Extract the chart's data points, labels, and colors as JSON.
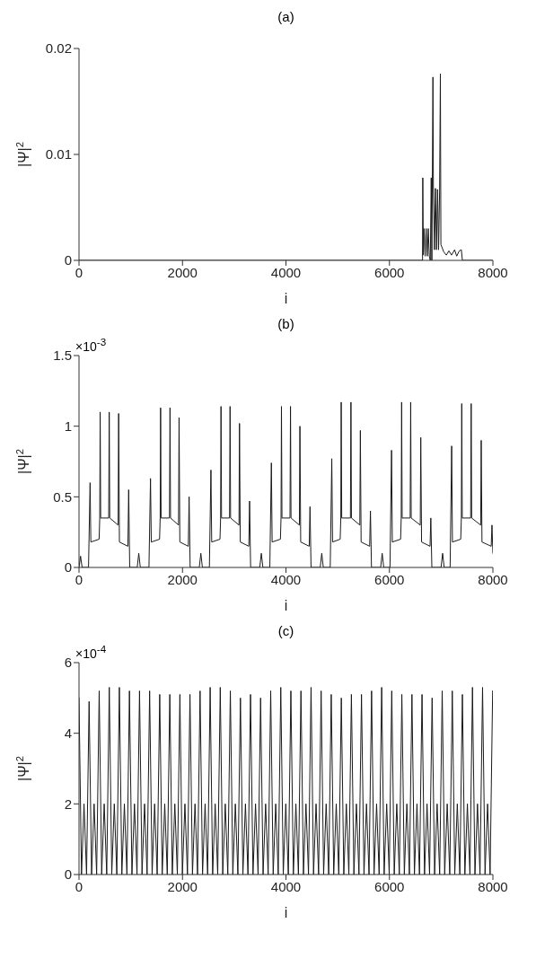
{
  "chart_data": [
    {
      "type": "line",
      "title": "(a)",
      "xlabel": "i",
      "ylabel": "|Ψ|$^{2}$",
      "color": "#1a1a1a",
      "line_style": "solid",
      "x": [
        0,
        6600,
        6640,
        6645,
        6655,
        6670,
        6690,
        6710,
        6730,
        6750,
        6770,
        6790,
        6808,
        6820,
        6841,
        6850,
        6870,
        6890,
        6910,
        6930,
        6950,
        6970,
        6985,
        6995,
        7050,
        7100,
        7150,
        7200,
        7260,
        7300,
        7350,
        7390,
        7410,
        8000
      ],
      "values": [
        0,
        0,
        0,
        0.0078,
        0.0005,
        0.003,
        0.0004,
        0.003,
        0.0004,
        0.003,
        0.0004,
        0,
        0.0078,
        0,
        0.0173,
        0.0067,
        0.001,
        0.0068,
        0.001,
        0.0067,
        0.001,
        0.0066,
        0.0176,
        0.0015,
        0.0008,
        0.0005,
        0.0009,
        0.0005,
        0.001,
        0.0004,
        0.0009,
        0.001,
        0,
        0
      ],
      "xlim": [
        0,
        8000
      ],
      "xticks": [
        0,
        2000,
        4000,
        6000,
        8000
      ],
      "ylim": [
        0,
        0.02
      ],
      "yticks": [
        0,
        0.01,
        0.02
      ]
    },
    {
      "type": "line",
      "title": "(b)",
      "xlabel": "i",
      "ylabel": "|Ψ|$^{2}$",
      "annotations": [
        "×10$^{-3}$"
      ],
      "color": "#1a1a1a",
      "line_style": "solid",
      "x": [
        0,
        30,
        60,
        184,
        214,
        229,
        389,
        401,
        409,
        419,
        574,
        584,
        594,
        756,
        766,
        781,
        945,
        960,
        980,
        1125,
        1155,
        1185,
        1352,
        1382,
        1397,
        1557,
        1569,
        1577,
        1587,
        1749,
        1759,
        1769,
        1924,
        1934,
        1949,
        2113,
        2128,
        2148,
        2325,
        2355,
        2385,
        2520,
        2550,
        2565,
        2725,
        2737,
        2745,
        2755,
        2910,
        2920,
        2930,
        3092,
        3102,
        3117,
        3282,
        3297,
        3317,
        3494,
        3524,
        3554,
        3688,
        3718,
        3733,
        3893,
        3905,
        3913,
        3923,
        4078,
        4088,
        4098,
        4260,
        4270,
        4285,
        4450,
        4465,
        4485,
        4662,
        4692,
        4722,
        4856,
        4886,
        4901,
        5048,
        5060,
        5068,
        5078,
        5246,
        5256,
        5266,
        5428,
        5438,
        5453,
        5618,
        5633,
        5653,
        5830,
        5860,
        5890,
        6011,
        6041,
        6056,
        6216,
        6228,
        6236,
        6246,
        6401,
        6411,
        6421,
        6596,
        6606,
        6621,
        6785,
        6800,
        6820,
        6998,
        7028,
        7058,
        7173,
        7203,
        7218,
        7378,
        7390,
        7398,
        7408,
        7570,
        7580,
        7590,
        7764,
        7774,
        7789,
        7967,
        7982,
        8000
      ],
      "values": [
        0,
        0.08,
        0,
        0,
        0.6,
        0.18,
        0.2,
        0.35,
        1.1,
        0.35,
        0.35,
        1.1,
        0.35,
        0.3,
        1.09,
        0.18,
        0.15,
        0.55,
        0,
        0,
        0.1,
        0,
        0,
        0.63,
        0.18,
        0.2,
        0.35,
        1.13,
        0.35,
        0.35,
        1.13,
        0.35,
        0.3,
        1.06,
        0.18,
        0.15,
        0.5,
        0,
        0,
        0.1,
        0,
        0,
        0.69,
        0.18,
        0.2,
        0.35,
        1.14,
        0.35,
        0.35,
        1.14,
        0.35,
        0.3,
        1.02,
        0.18,
        0.15,
        0.47,
        0,
        0,
        0.1,
        0,
        0,
        0.74,
        0.18,
        0.2,
        0.35,
        1.14,
        0.35,
        0.35,
        1.14,
        0.35,
        0.3,
        1,
        0.18,
        0.15,
        0.43,
        0,
        0,
        0.1,
        0,
        0,
        0.77,
        0.18,
        0.2,
        0.35,
        1.17,
        0.35,
        0.35,
        1.17,
        0.35,
        0.3,
        0.97,
        0.18,
        0.15,
        0.4,
        0,
        0,
        0.1,
        0,
        0,
        0.83,
        0.18,
        0.2,
        0.35,
        1.17,
        0.35,
        0.35,
        1.17,
        0.35,
        0.3,
        0.92,
        0.18,
        0.15,
        0.35,
        0,
        0,
        0.1,
        0,
        0,
        0.86,
        0.18,
        0.2,
        0.35,
        1.16,
        0.35,
        0.35,
        1.16,
        0.35,
        0.3,
        0.9,
        0.18,
        0.15,
        0.3,
        0.1
      ],
      "xlim": [
        0,
        8000
      ],
      "xticks": [
        0,
        2000,
        4000,
        6000,
        8000
      ],
      "ylim": [
        0,
        1.5
      ],
      "yticks": [
        0,
        0.5,
        1,
        1.5
      ]
    },
    {
      "type": "line",
      "title": "(c)",
      "xlabel": "i",
      "ylabel": "|Ψ|$^{2}$",
      "annotations": [
        "×10$^{-4}$"
      ],
      "color": "#1a1a1a",
      "line_style": "solid",
      "x": [
        0,
        48,
        97,
        146,
        195,
        243,
        292,
        341,
        390,
        438,
        487,
        536,
        585,
        633,
        682,
        731,
        780,
        828,
        877,
        926,
        975,
        1023,
        1072,
        1121,
        1170,
        1218,
        1267,
        1316,
        1365,
        1413,
        1462,
        1511,
        1560,
        1608,
        1657,
        1706,
        1755,
        1803,
        1852,
        1901,
        1950,
        1998,
        2047,
        2096,
        2145,
        2193,
        2242,
        2291,
        2340,
        2388,
        2437,
        2486,
        2535,
        2583,
        2632,
        2681,
        2730,
        2778,
        2827,
        2876,
        2925,
        2973,
        3022,
        3071,
        3120,
        3168,
        3217,
        3266,
        3315,
        3363,
        3412,
        3461,
        3510,
        3558,
        3607,
        3656,
        3705,
        3753,
        3802,
        3851,
        3900,
        3948,
        3997,
        4046,
        4095,
        4143,
        4192,
        4241,
        4290,
        4338,
        4387,
        4436,
        4485,
        4533,
        4582,
        4631,
        4680,
        4728,
        4777,
        4826,
        4875,
        4923,
        4972,
        5021,
        5070,
        5118,
        5167,
        5216,
        5265,
        5313,
        5362,
        5411,
        5460,
        5508,
        5557,
        5606,
        5655,
        5703,
        5752,
        5801,
        5850,
        5898,
        5947,
        5996,
        6045,
        6093,
        6142,
        6191,
        6240,
        6288,
        6337,
        6386,
        6435,
        6483,
        6532,
        6581,
        6630,
        6678,
        6727,
        6776,
        6825,
        6873,
        6922,
        6971,
        7020,
        7068,
        7117,
        7166,
        7215,
        7263,
        7312,
        7361,
        7410,
        7458,
        7507,
        7556,
        7605,
        7653,
        7702,
        7751,
        7800,
        7848,
        7897,
        7946,
        7995
      ],
      "values": [
        5,
        0,
        2,
        0,
        4.9,
        0,
        2,
        0,
        5.2,
        0,
        2,
        0,
        5.3,
        0,
        2,
        0,
        5.3,
        0,
        2,
        0,
        5.2,
        0,
        2,
        0,
        5.2,
        0,
        2,
        0,
        5.2,
        0,
        2,
        0,
        5.1,
        0,
        2,
        0,
        5.1,
        0,
        2,
        0,
        5.1,
        0,
        2,
        0,
        5.1,
        0,
        2,
        0,
        5.2,
        0,
        2,
        0,
        5.3,
        0,
        2,
        0,
        5.3,
        0,
        2,
        0,
        5.2,
        0,
        2,
        0,
        5,
        0,
        2,
        0,
        5.1,
        0,
        2,
        0,
        5,
        0,
        2,
        0,
        5.2,
        0,
        2,
        0,
        5.3,
        0,
        2,
        0,
        5.2,
        0,
        2,
        0,
        5.2,
        0,
        2,
        0,
        5.3,
        0,
        2,
        0,
        5.2,
        0,
        2,
        0,
        5.1,
        0,
        2,
        0,
        5,
        0,
        2,
        0,
        5.1,
        0,
        2,
        0,
        5.1,
        0,
        2,
        0,
        5.2,
        0,
        2,
        0,
        5.3,
        0,
        2,
        0,
        5.2,
        0,
        2,
        0,
        5.1,
        0,
        2,
        0,
        5.1,
        0,
        2,
        0,
        5.1,
        0,
        2,
        0,
        5,
        0,
        2,
        0,
        5.2,
        0,
        2,
        0,
        5.2,
        0,
        2,
        0,
        5.1,
        0,
        2,
        0,
        5.3,
        0,
        2,
        0,
        5.3,
        0,
        2,
        0,
        5.2
      ],
      "xlim": [
        0,
        8000
      ],
      "xticks": [
        0,
        2000,
        4000,
        6000,
        8000
      ],
      "ylim": [
        0,
        6
      ],
      "yticks": [
        0,
        2,
        4,
        6
      ]
    }
  ]
}
